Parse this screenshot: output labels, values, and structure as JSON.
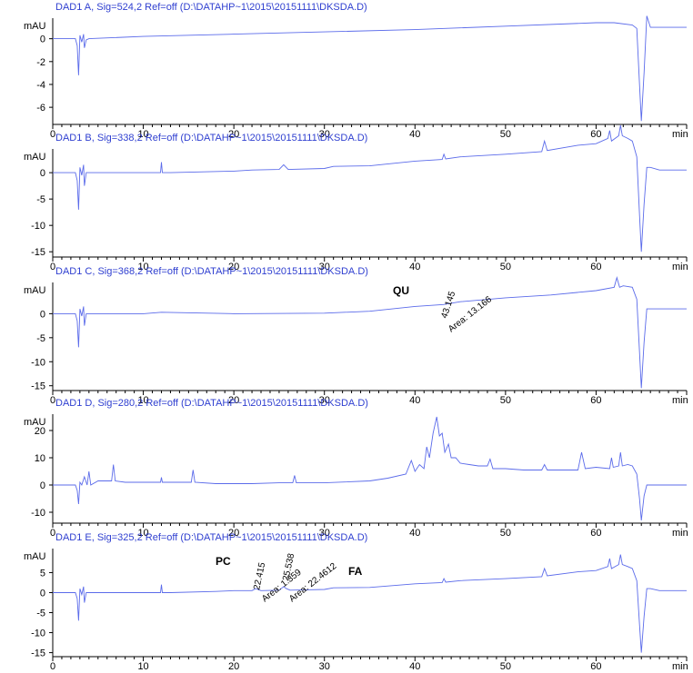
{
  "chart_data": [
    {
      "type": "line",
      "title": "DAD1 A, Sig=524,2 Ref=off (D:\\DATAHP~1\\2015\\20151111\\DKSDA.D)",
      "ylabel": "mAU",
      "xlabel": "min",
      "xlim": [
        0,
        70
      ],
      "ylim": [
        -7.5,
        1.8
      ],
      "xticks": [
        0,
        10,
        20,
        30,
        40,
        50,
        60
      ],
      "yticks": [
        0,
        -2,
        -4,
        -6
      ],
      "series": [
        {
          "x": [
            0,
            2.5,
            2.7,
            2.85,
            3,
            3.2,
            3.4,
            3.5,
            3.7,
            4,
            10,
            20,
            30,
            40,
            50,
            60,
            62,
            64,
            64.5,
            64.8,
            65.0,
            65.3,
            65.6,
            66,
            67,
            70
          ],
          "y": [
            0,
            0,
            -0.6,
            -3.2,
            0.3,
            -0.3,
            0.4,
            -0.8,
            -0.1,
            0,
            0.2,
            0.4,
            0.6,
            0.8,
            1.1,
            1.4,
            1.4,
            1.2,
            0.9,
            -4.0,
            -7.2,
            -3.0,
            2.0,
            1.0,
            1.0,
            1.0
          ]
        }
      ],
      "annotations": []
    },
    {
      "type": "line",
      "title": "DAD1 B, Sig=338,2 Ref=off (D:\\DATAHP~1\\2015\\20151111\\DKSDA.D)",
      "ylabel": "mAU",
      "xlabel": "min",
      "xlim": [
        0,
        70
      ],
      "ylim": [
        -16,
        4.5
      ],
      "xticks": [
        0,
        10,
        20,
        30,
        40,
        50,
        60
      ],
      "yticks": [
        0,
        -5,
        -10,
        -15
      ],
      "series": [
        {
          "x": [
            0,
            2.5,
            2.7,
            2.85,
            3,
            3.2,
            3.4,
            3.5,
            3.7,
            4,
            10,
            11.9,
            12,
            12.1,
            13,
            20,
            22,
            25,
            25.5,
            26,
            30,
            31,
            35,
            40,
            43,
            43.2,
            43.4,
            45,
            50,
            54,
            54.3,
            54.6,
            58,
            60,
            61.3,
            61.5,
            61.7,
            62.5,
            62.7,
            62.9,
            63.5,
            64,
            64.5,
            64.8,
            65.0,
            65.3,
            65.6,
            66,
            67,
            70
          ],
          "y": [
            0,
            0,
            -1.5,
            -7.0,
            1.0,
            -0.5,
            1.5,
            -2.5,
            0,
            0,
            0,
            0,
            2.0,
            0,
            0,
            0.3,
            0.5,
            0.6,
            1.5,
            0.6,
            0.8,
            1.2,
            1.3,
            2.2,
            2.5,
            3.5,
            2.6,
            3.0,
            3.5,
            4.0,
            6.0,
            4.2,
            5.2,
            5.5,
            6.5,
            8.0,
            6.0,
            7.0,
            9.0,
            7.0,
            6.5,
            6.0,
            3.0,
            -8.0,
            -15.0,
            -6.0,
            1.0,
            1.0,
            0.5,
            0.5
          ]
        }
      ],
      "annotations": []
    },
    {
      "type": "line",
      "title": "DAD1 C, Sig=368,2 Ref=off (D:\\DATAHP~1\\2015\\20151111\\DKSDA.D)",
      "ylabel": "mAU",
      "xlabel": "min",
      "xlim": [
        0,
        70
      ],
      "ylim": [
        -16,
        6.5
      ],
      "xticks": [
        0,
        10,
        20,
        30,
        40,
        50,
        60
      ],
      "yticks": [
        0,
        -5,
        -10,
        -15
      ],
      "series": [
        {
          "x": [
            0,
            2.5,
            2.7,
            2.85,
            3,
            3.2,
            3.4,
            3.5,
            3.7,
            4,
            10,
            12,
            20,
            30,
            35,
            40,
            43.145,
            45,
            50,
            55,
            60,
            62,
            62.3,
            62.6,
            63,
            64,
            64.5,
            64.8,
            65.0,
            65.3,
            65.6,
            66,
            67,
            70
          ],
          "y": [
            0,
            0,
            -1.5,
            -7.0,
            1.0,
            -0.5,
            1.5,
            -2.5,
            0,
            0,
            0,
            0.3,
            0,
            0.1,
            0.5,
            1.5,
            1.9,
            2.5,
            3.3,
            3.9,
            4.8,
            5.5,
            7.5,
            5.5,
            5.8,
            5.5,
            3.0,
            -8.0,
            -15.5,
            -6.0,
            1.0,
            1.0,
            1.0,
            1.0
          ]
        }
      ],
      "annotations": [
        {
          "label": "QU"
        },
        {
          "label": "43.145"
        },
        {
          "label": "Area: 13.166"
        }
      ]
    },
    {
      "type": "line",
      "title": "DAD1 D, Sig=280,2 Ref=off (D:\\DATAHP~1\\2015\\20151111\\DKSDA.D)",
      "ylabel": "mAU",
      "xlabel": "min",
      "xlim": [
        0,
        70
      ],
      "ylim": [
        -14,
        26
      ],
      "xticks": [
        0,
        10,
        20,
        30,
        40,
        50,
        60
      ],
      "yticks": [
        20,
        10,
        0,
        -10
      ],
      "series": [
        {
          "x": [
            0,
            2.5,
            2.7,
            2.85,
            3,
            3.2,
            3.5,
            3.8,
            4,
            4.2,
            5,
            6.5,
            6.7,
            6.9,
            8,
            10,
            11.9,
            12,
            12.1,
            14,
            15.3,
            15.5,
            15.7,
            18,
            20,
            22,
            25,
            26.5,
            26.7,
            26.9,
            30,
            35,
            37,
            39,
            39.6,
            40,
            40.5,
            41,
            41.3,
            41.6,
            42,
            42.4,
            42.7,
            43,
            43.3,
            43.7,
            44,
            44.5,
            45,
            46,
            47,
            48,
            48.3,
            48.6,
            50,
            52,
            54,
            54.3,
            54.6,
            56,
            58,
            58.4,
            58.8,
            60,
            61.5,
            61.7,
            61.9,
            62.5,
            62.7,
            62.9,
            63.5,
            64,
            64.5,
            64.8,
            65.0,
            65.3,
            65.6,
            66,
            67,
            70
          ],
          "y": [
            0,
            0,
            -2.0,
            -7.0,
            1.0,
            0,
            3.0,
            0,
            5.0,
            0,
            1.5,
            1.5,
            7.5,
            1.5,
            1.0,
            1.0,
            1.0,
            2.8,
            1.0,
            1.0,
            1.0,
            5.5,
            1.0,
            0.5,
            0.5,
            0.5,
            0.8,
            0.8,
            3.5,
            0.8,
            0.8,
            1.5,
            2.5,
            4.0,
            9.0,
            5.0,
            7.5,
            6.0,
            14.0,
            10.0,
            19.0,
            25.0,
            18.0,
            19.0,
            12.0,
            15.0,
            10.0,
            10.0,
            8.0,
            7.5,
            7.0,
            7.0,
            9.5,
            6.0,
            6.0,
            5.5,
            5.5,
            7.5,
            5.5,
            5.5,
            5.5,
            12.0,
            6.0,
            6.5,
            6.0,
            10.0,
            6.5,
            7.0,
            12.0,
            7.0,
            7.5,
            7.0,
            4.0,
            -5.0,
            -13.0,
            -4.0,
            0,
            0,
            0,
            0
          ]
        }
      ],
      "annotations": []
    },
    {
      "type": "line",
      "title": "DAD1 E, Sig=325,2 Ref=off (D:\\DATAHP~1\\2015\\20151111\\DKSDA.D)",
      "ylabel": "mAU",
      "xlabel": "min",
      "xlim": [
        0,
        70
      ],
      "ylim": [
        -16,
        11
      ],
      "xticks": [
        0,
        10,
        20,
        30,
        40,
        50,
        60
      ],
      "yticks": [
        5,
        0,
        -5,
        -10,
        -15
      ],
      "series": [
        {
          "x": [
            0,
            2.5,
            2.7,
            2.85,
            3,
            3.2,
            3.4,
            3.5,
            3.7,
            4,
            10,
            11.9,
            12,
            12.1,
            13,
            18,
            20,
            22,
            22.415,
            23,
            25,
            25.5,
            25.8,
            26.2,
            28,
            30,
            31,
            35,
            40,
            43,
            43.2,
            43.4,
            45,
            50,
            54,
            54.3,
            54.6,
            58,
            60,
            61.3,
            61.5,
            61.7,
            62.5,
            62.7,
            62.9,
            63.5,
            64,
            64.5,
            64.8,
            65.0,
            65.3,
            65.6,
            66,
            67,
            70
          ],
          "y": [
            0,
            0,
            -1.5,
            -7.0,
            1.0,
            -0.5,
            1.5,
            -2.5,
            0,
            0,
            0,
            0,
            2.0,
            0,
            0,
            0.3,
            0.5,
            0.5,
            1.0,
            0.5,
            0.6,
            1.5,
            1.0,
            0.6,
            0.7,
            0.8,
            1.2,
            1.3,
            2.2,
            2.5,
            3.5,
            2.6,
            3.0,
            3.5,
            4.0,
            6.0,
            4.2,
            5.2,
            5.5,
            6.5,
            8.5,
            6.0,
            7.0,
            9.5,
            7.0,
            6.5,
            6.0,
            3.0,
            -8.0,
            -15.0,
            -6.0,
            1.0,
            1.0,
            0.5,
            0.5
          ]
        }
      ],
      "annotations": [
        {
          "label": "PC"
        },
        {
          "label": "22.415"
        },
        {
          "label": "Area: 1.359"
        },
        {
          "label": "25.538"
        },
        {
          "label": "Area: 22.4612"
        },
        {
          "label": "FA"
        }
      ]
    }
  ]
}
